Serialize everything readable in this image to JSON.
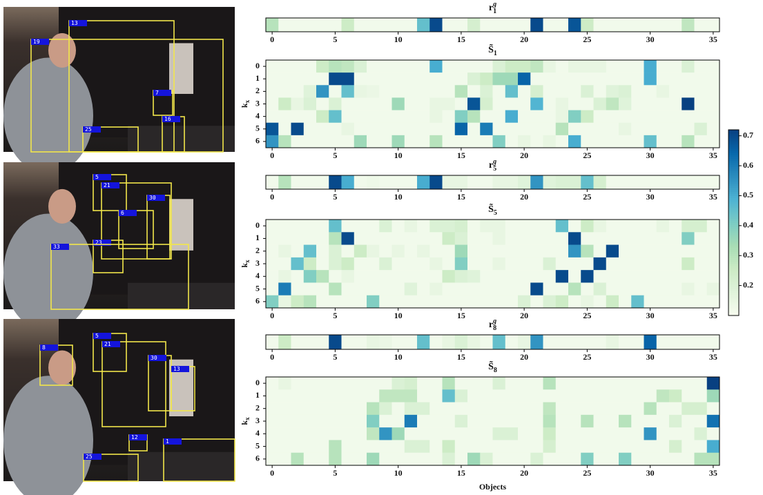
{
  "photos": [
    {
      "boxes": [
        "13",
        "19",
        "7",
        "25",
        "16"
      ]
    },
    {
      "boxes": [
        "5",
        "21",
        "30",
        "6",
        "23",
        "33"
      ]
    },
    {
      "boxes": [
        "8",
        "5",
        "21",
        "30",
        "13",
        "12",
        "1",
        "25"
      ]
    }
  ],
  "colorbar": {
    "colormap": "GnBu",
    "lim": [
      0.1,
      0.72
    ],
    "ticks": [
      0.2,
      0.3,
      0.4,
      0.5,
      0.6,
      0.7
    ]
  },
  "chart_data": [
    {
      "type": "strip",
      "title": "r",
      "title_sup": "g",
      "title_sub": "1",
      "xlim": [
        -0.5,
        35.5
      ],
      "xticks": [
        0,
        5,
        10,
        15,
        20,
        25,
        30,
        35
      ],
      "values": [
        0.3,
        0.12,
        0.12,
        0.12,
        0.12,
        0.12,
        0.25,
        0.12,
        0.12,
        0.12,
        0.12,
        0.12,
        0.45,
        0.7,
        0.12,
        0.12,
        0.22,
        0.12,
        0.12,
        0.12,
        0.12,
        0.7,
        0.12,
        0.12,
        0.68,
        0.25,
        0.12,
        0.12,
        0.12,
        0.12,
        0.12,
        0.12,
        0.12,
        0.28,
        0.12,
        0.12
      ]
    },
    {
      "type": "heatmap",
      "title": "S̃",
      "title_sub": "1",
      "ylabel": "k",
      "ylabel_sub": "x",
      "xlim": [
        -0.5,
        35.5
      ],
      "xticks": [
        0,
        5,
        10,
        15,
        20,
        25,
        30,
        35
      ],
      "ylim": [
        -0.5,
        6.5
      ],
      "yticks": [
        0,
        1,
        2,
        3,
        4,
        5,
        6
      ],
      "values": [
        [
          0.12,
          0.12,
          0.12,
          0.12,
          0.25,
          0.3,
          0.28,
          0.2,
          0.12,
          0.12,
          0.12,
          0.12,
          0.12,
          0.5,
          0.12,
          0.12,
          0.12,
          0.12,
          0.2,
          0.25,
          0.25,
          0.28,
          0.15,
          0.12,
          0.15,
          0.15,
          0.15,
          0.12,
          0.12,
          0.12,
          0.5,
          0.12,
          0.12,
          0.2,
          0.12,
          0.12
        ],
        [
          0.12,
          0.12,
          0.12,
          0.12,
          0.12,
          0.7,
          0.7,
          0.12,
          0.12,
          0.12,
          0.12,
          0.12,
          0.12,
          0.12,
          0.12,
          0.12,
          0.2,
          0.25,
          0.35,
          0.35,
          0.65,
          0.12,
          0.12,
          0.12,
          0.12,
          0.12,
          0.12,
          0.12,
          0.12,
          0.12,
          0.5,
          0.12,
          0.12,
          0.12,
          0.12,
          0.12
        ],
        [
          0.12,
          0.12,
          0.12,
          0.18,
          0.55,
          0.12,
          0.45,
          0.15,
          0.14,
          0.12,
          0.12,
          0.12,
          0.12,
          0.12,
          0.12,
          0.3,
          0.12,
          0.2,
          0.12,
          0.45,
          0.12,
          0.22,
          0.12,
          0.12,
          0.12,
          0.2,
          0.12,
          0.18,
          0.2,
          0.12,
          0.12,
          0.15,
          0.12,
          0.12,
          0.12,
          0.12
        ],
        [
          0.12,
          0.25,
          0.15,
          0.2,
          0.12,
          0.2,
          0.12,
          0.12,
          0.12,
          0.12,
          0.35,
          0.12,
          0.12,
          0.15,
          0.15,
          0.12,
          0.68,
          0.22,
          0.12,
          0.12,
          0.12,
          0.48,
          0.12,
          0.15,
          0.12,
          0.12,
          0.2,
          0.28,
          0.18,
          0.12,
          0.12,
          0.12,
          0.12,
          0.72,
          0.12,
          0.12
        ],
        [
          0.12,
          0.12,
          0.12,
          0.12,
          0.25,
          0.45,
          0.12,
          0.12,
          0.12,
          0.12,
          0.12,
          0.12,
          0.12,
          0.15,
          0.12,
          0.4,
          0.3,
          0.12,
          0.12,
          0.5,
          0.12,
          0.12,
          0.12,
          0.15,
          0.4,
          0.25,
          0.12,
          0.12,
          0.12,
          0.12,
          0.12,
          0.12,
          0.12,
          0.12,
          0.12,
          0.12
        ],
        [
          0.68,
          0.12,
          0.7,
          0.12,
          0.12,
          0.12,
          0.15,
          0.12,
          0.12,
          0.12,
          0.12,
          0.12,
          0.12,
          0.12,
          0.12,
          0.65,
          0.12,
          0.6,
          0.12,
          0.12,
          0.12,
          0.12,
          0.12,
          0.3,
          0.12,
          0.12,
          0.12,
          0.12,
          0.15,
          0.12,
          0.12,
          0.12,
          0.12,
          0.12,
          0.2,
          0.12
        ],
        [
          0.55,
          0.3,
          0.12,
          0.12,
          0.12,
          0.12,
          0.12,
          0.35,
          0.12,
          0.12,
          0.35,
          0.12,
          0.12,
          0.3,
          0.12,
          0.12,
          0.12,
          0.12,
          0.4,
          0.12,
          0.15,
          0.12,
          0.15,
          0.12,
          0.5,
          0.12,
          0.12,
          0.12,
          0.12,
          0.12,
          0.45,
          0.12,
          0.12,
          0.3,
          0.12,
          0.12
        ]
      ]
    },
    {
      "type": "strip",
      "title": "r",
      "title_sup": "g",
      "title_sub": "5",
      "xlim": [
        -0.5,
        35.5
      ],
      "xticks": [
        0,
        5,
        10,
        15,
        20,
        25,
        30,
        35
      ],
      "values": [
        0.12,
        0.3,
        0.12,
        0.12,
        0.12,
        0.7,
        0.5,
        0.12,
        0.13,
        0.12,
        0.12,
        0.12,
        0.5,
        0.7,
        0.15,
        0.15,
        0.12,
        0.12,
        0.15,
        0.15,
        0.18,
        0.55,
        0.18,
        0.2,
        0.2,
        0.45,
        0.22,
        0.12,
        0.12,
        0.12,
        0.12,
        0.12,
        0.12,
        0.12,
        0.12,
        0.12
      ]
    },
    {
      "type": "heatmap",
      "title": "S̃",
      "title_sub": "5",
      "ylabel": "k",
      "ylabel_sub": "x",
      "xlim": [
        -0.5,
        35.5
      ],
      "xticks": [
        0,
        5,
        10,
        15,
        20,
        25,
        30,
        35
      ],
      "ylim": [
        -0.5,
        6.5
      ],
      "yticks": [
        0,
        1,
        2,
        3,
        4,
        5,
        6
      ],
      "values": [
        [
          0.12,
          0.12,
          0.12,
          0.12,
          0.12,
          0.45,
          0.12,
          0.12,
          0.12,
          0.2,
          0.12,
          0.15,
          0.12,
          0.2,
          0.2,
          0.22,
          0.12,
          0.15,
          0.15,
          0.12,
          0.12,
          0.12,
          0.12,
          0.45,
          0.12,
          0.25,
          0.15,
          0.12,
          0.12,
          0.12,
          0.12,
          0.15,
          0.12,
          0.22,
          0.22,
          0.12
        ],
        [
          0.12,
          0.12,
          0.12,
          0.12,
          0.12,
          0.3,
          0.7,
          0.12,
          0.12,
          0.12,
          0.12,
          0.12,
          0.12,
          0.12,
          0.25,
          0.2,
          0.12,
          0.12,
          0.15,
          0.12,
          0.12,
          0.12,
          0.12,
          0.12,
          0.7,
          0.12,
          0.12,
          0.12,
          0.12,
          0.12,
          0.12,
          0.12,
          0.12,
          0.4,
          0.12,
          0.12
        ],
        [
          0.12,
          0.15,
          0.12,
          0.45,
          0.12,
          0.2,
          0.12,
          0.25,
          0.15,
          0.12,
          0.15,
          0.12,
          0.15,
          0.12,
          0.12,
          0.35,
          0.12,
          0.12,
          0.12,
          0.12,
          0.12,
          0.12,
          0.12,
          0.12,
          0.55,
          0.3,
          0.12,
          0.7,
          0.12,
          0.12,
          0.12,
          0.12,
          0.12,
          0.12,
          0.12,
          0.12
        ],
        [
          0.12,
          0.12,
          0.45,
          0.25,
          0.12,
          0.2,
          0.25,
          0.12,
          0.12,
          0.2,
          0.12,
          0.12,
          0.12,
          0.15,
          0.12,
          0.4,
          0.12,
          0.12,
          0.15,
          0.12,
          0.12,
          0.12,
          0.2,
          0.12,
          0.12,
          0.12,
          0.7,
          0.12,
          0.12,
          0.12,
          0.12,
          0.12,
          0.12,
          0.25,
          0.12,
          0.12
        ],
        [
          0.12,
          0.15,
          0.12,
          0.4,
          0.3,
          0.12,
          0.15,
          0.12,
          0.12,
          0.12,
          0.12,
          0.12,
          0.12,
          0.12,
          0.25,
          0.2,
          0.18,
          0.12,
          0.12,
          0.12,
          0.12,
          0.12,
          0.12,
          0.7,
          0.12,
          0.7,
          0.12,
          0.12,
          0.12,
          0.12,
          0.12,
          0.12,
          0.12,
          0.12,
          0.12,
          0.12
        ],
        [
          0.12,
          0.6,
          0.12,
          0.12,
          0.12,
          0.3,
          0.12,
          0.12,
          0.12,
          0.12,
          0.12,
          0.18,
          0.12,
          0.15,
          0.12,
          0.12,
          0.12,
          0.12,
          0.12,
          0.12,
          0.12,
          0.7,
          0.12,
          0.12,
          0.3,
          0.12,
          0.2,
          0.12,
          0.12,
          0.12,
          0.12,
          0.12,
          0.12,
          0.15,
          0.12,
          0.15
        ],
        [
          0.4,
          0.15,
          0.25,
          0.3,
          0.12,
          0.12,
          0.12,
          0.12,
          0.4,
          0.12,
          0.12,
          0.12,
          0.12,
          0.12,
          0.12,
          0.12,
          0.12,
          0.12,
          0.12,
          0.12,
          0.2,
          0.12,
          0.2,
          0.25,
          0.12,
          0.15,
          0.12,
          0.25,
          0.12,
          0.45,
          0.12,
          0.12,
          0.12,
          0.12,
          0.12,
          0.12
        ]
      ]
    },
    {
      "type": "strip",
      "title": "r",
      "title_sup": "g",
      "title_sub": "8",
      "xlim": [
        -0.5,
        35.5
      ],
      "xticks": [
        0,
        5,
        10,
        15,
        20,
        25,
        30,
        35
      ],
      "values": [
        0.12,
        0.25,
        0.12,
        0.12,
        0.12,
        0.7,
        0.12,
        0.12,
        0.15,
        0.14,
        0.12,
        0.12,
        0.45,
        0.12,
        0.15,
        0.2,
        0.15,
        0.12,
        0.45,
        0.12,
        0.15,
        0.55,
        0.12,
        0.12,
        0.12,
        0.12,
        0.12,
        0.15,
        0.12,
        0.12,
        0.65,
        0.12,
        0.12,
        0.12,
        0.12,
        0.12
      ]
    },
    {
      "type": "heatmap",
      "title": "S̃",
      "title_sub": "8",
      "ylabel": "k",
      "ylabel_sub": "x",
      "xlabel": "Objects",
      "xlim": [
        -0.5,
        35.5
      ],
      "xticks": [
        0,
        5,
        10,
        15,
        20,
        25,
        30,
        35
      ],
      "ylim": [
        -0.5,
        6.5
      ],
      "yticks": [
        0,
        1,
        2,
        3,
        4,
        5,
        6
      ],
      "values": [
        [
          0.12,
          0.15,
          0.12,
          0.12,
          0.12,
          0.12,
          0.12,
          0.12,
          0.12,
          0.12,
          0.2,
          0.22,
          0.12,
          0.12,
          0.3,
          0.12,
          0.12,
          0.12,
          0.2,
          0.12,
          0.12,
          0.12,
          0.3,
          0.12,
          0.12,
          0.12,
          0.12,
          0.12,
          0.12,
          0.12,
          0.12,
          0.12,
          0.12,
          0.12,
          0.12,
          0.72
        ],
        [
          0.12,
          0.12,
          0.12,
          0.12,
          0.12,
          0.12,
          0.12,
          0.12,
          0.12,
          0.28,
          0.28,
          0.28,
          0.12,
          0.12,
          0.45,
          0.2,
          0.12,
          0.12,
          0.12,
          0.12,
          0.12,
          0.12,
          0.12,
          0.12,
          0.12,
          0.12,
          0.12,
          0.12,
          0.12,
          0.12,
          0.12,
          0.28,
          0.25,
          0.12,
          0.12,
          0.35
        ],
        [
          0.12,
          0.12,
          0.12,
          0.12,
          0.12,
          0.12,
          0.12,
          0.12,
          0.3,
          0.2,
          0.12,
          0.2,
          0.2,
          0.12,
          0.12,
          0.12,
          0.12,
          0.12,
          0.12,
          0.12,
          0.12,
          0.12,
          0.28,
          0.12,
          0.12,
          0.12,
          0.12,
          0.12,
          0.12,
          0.12,
          0.3,
          0.12,
          0.12,
          0.22,
          0.22,
          0.12
        ],
        [
          0.12,
          0.12,
          0.12,
          0.12,
          0.12,
          0.12,
          0.12,
          0.12,
          0.4,
          0.12,
          0.12,
          0.6,
          0.12,
          0.12,
          0.12,
          0.2,
          0.12,
          0.12,
          0.12,
          0.12,
          0.12,
          0.12,
          0.3,
          0.12,
          0.12,
          0.3,
          0.12,
          0.12,
          0.3,
          0.12,
          0.12,
          0.12,
          0.2,
          0.12,
          0.12,
          0.62
        ],
        [
          0.12,
          0.12,
          0.12,
          0.12,
          0.12,
          0.12,
          0.12,
          0.12,
          0.28,
          0.55,
          0.35,
          0.12,
          0.12,
          0.12,
          0.12,
          0.12,
          0.12,
          0.12,
          0.2,
          0.2,
          0.12,
          0.12,
          0.25,
          0.12,
          0.12,
          0.12,
          0.12,
          0.12,
          0.12,
          0.12,
          0.55,
          0.12,
          0.12,
          0.12,
          0.2,
          0.12
        ],
        [
          0.12,
          0.12,
          0.12,
          0.12,
          0.12,
          0.3,
          0.12,
          0.12,
          0.12,
          0.12,
          0.12,
          0.2,
          0.2,
          0.12,
          0.25,
          0.12,
          0.12,
          0.12,
          0.12,
          0.12,
          0.12,
          0.12,
          0.22,
          0.12,
          0.12,
          0.12,
          0.12,
          0.12,
          0.12,
          0.12,
          0.12,
          0.12,
          0.22,
          0.12,
          0.12,
          0.5
        ],
        [
          0.12,
          0.12,
          0.3,
          0.12,
          0.12,
          0.3,
          0.12,
          0.12,
          0.35,
          0.12,
          0.12,
          0.12,
          0.12,
          0.12,
          0.2,
          0.12,
          0.35,
          0.2,
          0.12,
          0.12,
          0.12,
          0.2,
          0.12,
          0.12,
          0.12,
          0.4,
          0.12,
          0.12,
          0.4,
          0.12,
          0.12,
          0.12,
          0.12,
          0.12,
          0.3,
          0.3
        ]
      ]
    }
  ]
}
